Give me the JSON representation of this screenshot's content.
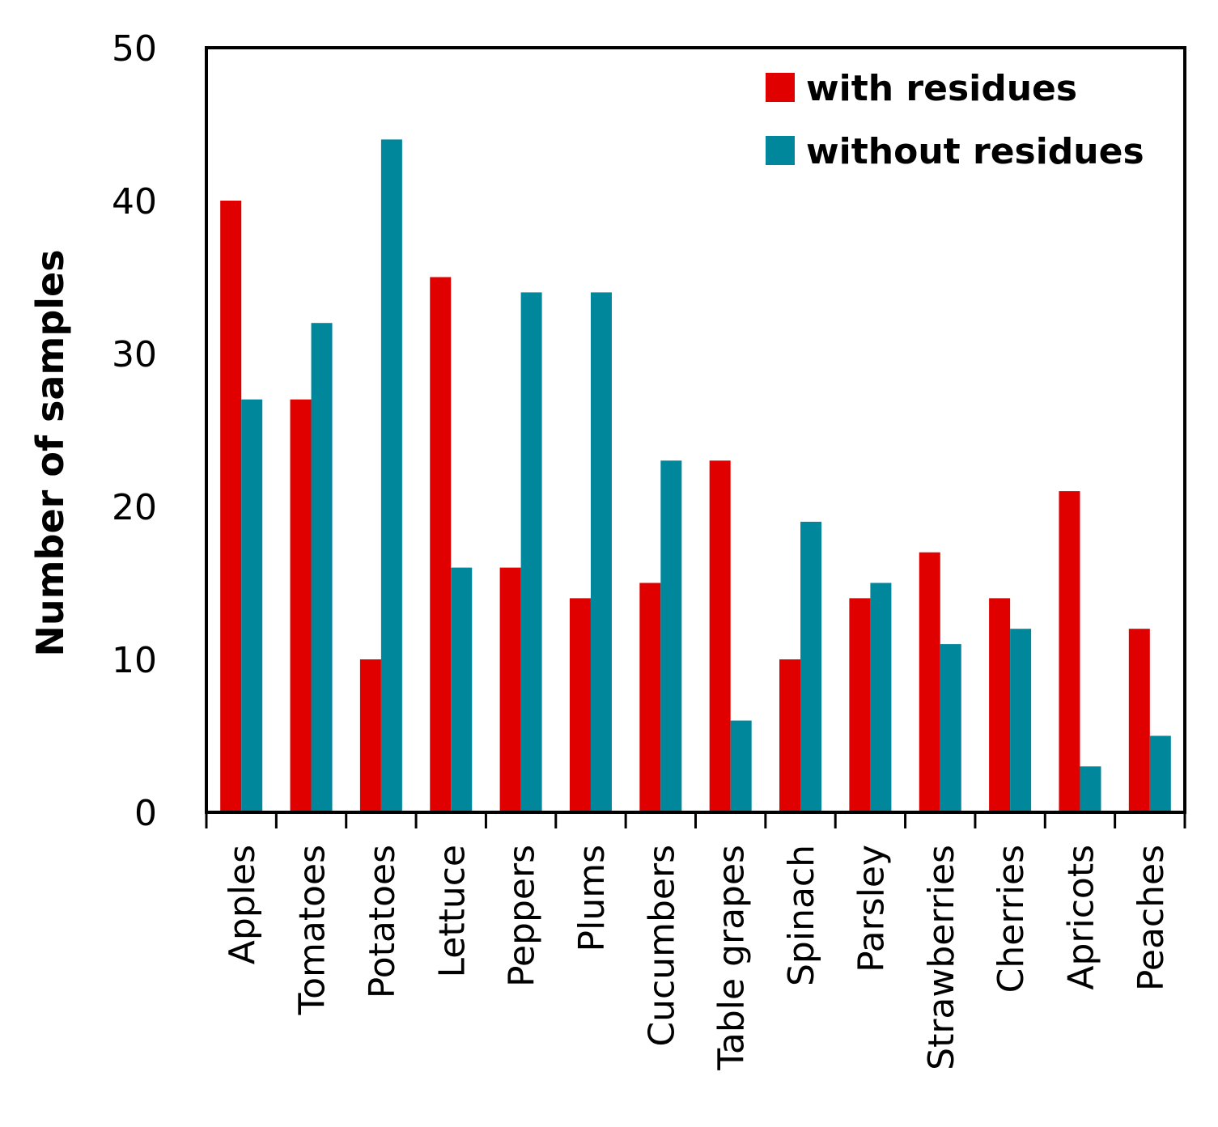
{
  "chart_data": {
    "type": "bar",
    "title": "",
    "xlabel": "",
    "ylabel": "Number of samples",
    "ylim": [
      0,
      50
    ],
    "yticks": [
      "0",
      "10",
      "20",
      "30",
      "40",
      "50"
    ],
    "categories": [
      "Apples",
      "Tomatoes",
      "Potatoes",
      "Lettuce",
      "Peppers",
      "Plums",
      "Cucumbers",
      "Table grapes",
      "Spinach",
      "Parsley",
      "Strawberries",
      "Cherries",
      "Apricots",
      "Peaches"
    ],
    "series": [
      {
        "name": "with residues",
        "color": "#e10000",
        "values": [
          40,
          27,
          10,
          35,
          16,
          14,
          15,
          23,
          10,
          14,
          17,
          14,
          21,
          12
        ]
      },
      {
        "name": "without residues",
        "color": "#00879c",
        "values": [
          27,
          32,
          44,
          16,
          34,
          34,
          23,
          6,
          19,
          15,
          11,
          12,
          3,
          5
        ]
      }
    ],
    "legend": {
      "position": "top-right",
      "entries": [
        "with residues",
        "without residues"
      ]
    },
    "grid": false
  }
}
